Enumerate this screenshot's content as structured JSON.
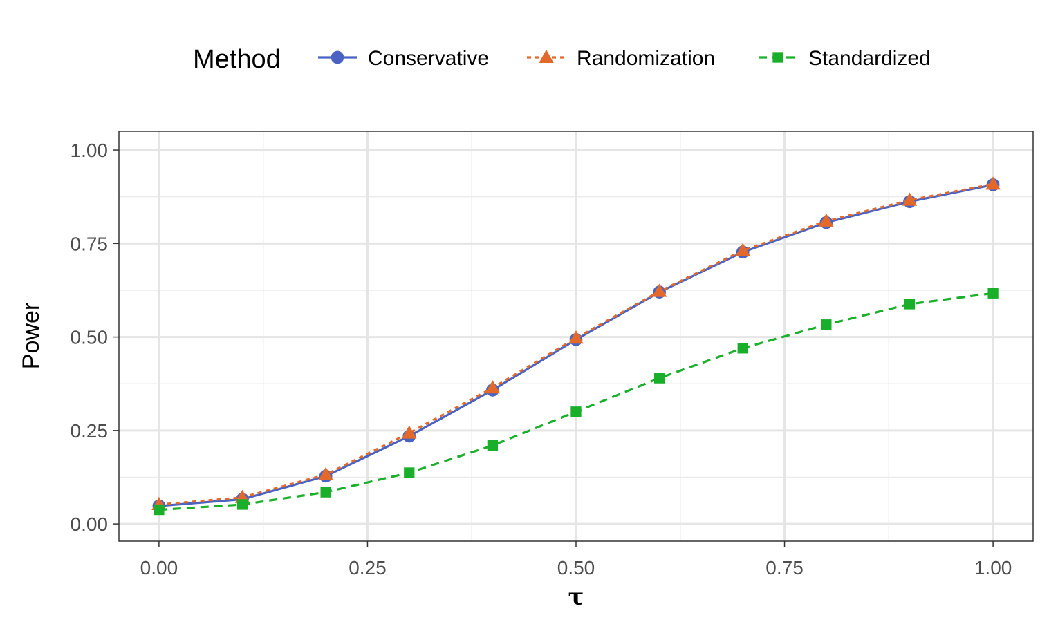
{
  "chart_data": {
    "type": "line",
    "xlabel": "τ",
    "ylabel": "Power",
    "xlim": [
      -0.048,
      1.048
    ],
    "ylim": [
      -0.046,
      1.05
    ],
    "x_ticks": [
      0.0,
      0.25,
      0.5,
      0.75,
      1.0
    ],
    "x_tick_labels": [
      "0.00",
      "0.25",
      "0.50",
      "0.75",
      "1.00"
    ],
    "y_ticks": [
      0.0,
      0.25,
      0.5,
      0.75,
      1.0
    ],
    "y_tick_labels": [
      "0.00",
      "0.25",
      "0.50",
      "0.75",
      "1.00"
    ],
    "grid": true,
    "legend": {
      "title": "Method",
      "placement": "top"
    },
    "x": [
      0.0,
      0.1,
      0.2,
      0.3,
      0.4,
      0.5,
      0.6,
      0.7,
      0.8,
      0.9,
      1.0
    ],
    "series": [
      {
        "name": "Conservative",
        "color": "#4a63c3",
        "marker": "circle",
        "linestyle": "solid",
        "values": [
          0.048,
          0.066,
          0.128,
          0.235,
          0.358,
          0.493,
          0.62,
          0.727,
          0.806,
          0.862,
          0.907
        ]
      },
      {
        "name": "Randomization",
        "color": "#e2692a",
        "marker": "triangle",
        "linestyle": "dotted",
        "values": [
          0.052,
          0.071,
          0.132,
          0.243,
          0.364,
          0.497,
          0.622,
          0.731,
          0.81,
          0.866,
          0.909
        ]
      },
      {
        "name": "Standardized",
        "color": "#1aaf2a",
        "marker": "square",
        "linestyle": "dashed",
        "values": [
          0.038,
          0.052,
          0.085,
          0.137,
          0.21,
          0.3,
          0.39,
          0.47,
          0.533,
          0.588,
          0.617
        ]
      }
    ]
  }
}
